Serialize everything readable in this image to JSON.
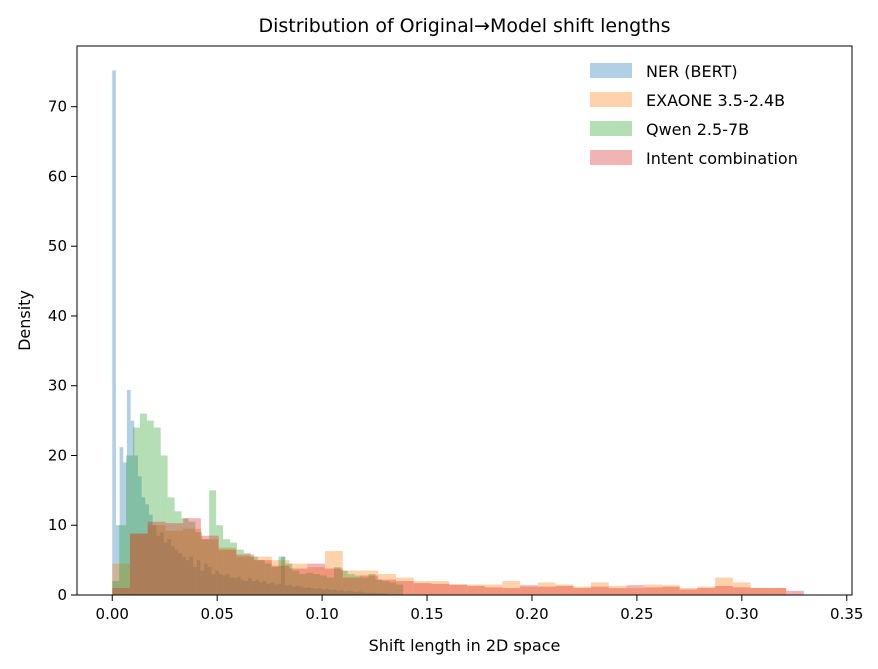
{
  "chart_data": {
    "type": "histogram",
    "title": "Distribution of Original→Model shift lengths",
    "xlabel": "Shift length in 2D space",
    "ylabel": "Density",
    "xlim": [
      -0.0168,
      0.3525
    ],
    "ylim": [
      0,
      78.7
    ],
    "xticks": [
      0.0,
      0.05,
      0.1,
      0.15,
      0.2,
      0.25,
      0.3,
      0.35
    ],
    "xtick_labels": [
      "0.00",
      "0.05",
      "0.10",
      "0.15",
      "0.20",
      "0.25",
      "0.30",
      "0.35"
    ],
    "yticks": [
      0,
      10,
      20,
      30,
      40,
      50,
      60,
      70
    ],
    "ytick_labels": [
      "0",
      "10",
      "20",
      "30",
      "40",
      "50",
      "60",
      "70"
    ],
    "legend_position": "top-right",
    "grid": false,
    "series": [
      {
        "name": "NER (BERT)",
        "color": "#1f77b4",
        "alpha": 0.35,
        "bin_start": 0.0,
        "bin_width": 0.00175,
        "values": [
          75.2,
          10.0,
          21.2,
          19.0,
          29.4,
          25.0,
          20.0,
          17.0,
          14.0,
          13.0,
          11.5,
          10.0,
          8.5,
          9.0,
          7.5,
          8.0,
          7.0,
          6.5,
          6.0,
          5.5,
          5.0,
          5.5,
          4.0,
          5.0,
          3.5,
          4.5,
          4.0,
          3.0,
          3.5,
          3.0,
          2.8,
          3.0,
          2.5,
          2.4,
          2.6,
          2.2,
          2.0,
          2.4,
          2.0,
          2.2,
          1.8,
          2.0,
          1.6,
          1.8,
          1.5,
          1.6,
          5.5,
          1.4,
          1.5,
          1.2,
          1.3,
          1.2,
          1.0,
          1.1,
          1.0,
          0.9,
          1.0,
          0.8,
          0.9,
          0.7,
          0.8,
          0.6,
          0.7,
          0.5,
          0.6,
          0.5,
          0.4,
          0.5,
          0.4,
          0.3,
          0.35,
          0.3,
          0.25,
          0.3,
          0.2
        ]
      },
      {
        "name": "EXAONE 3.5-2.4B",
        "color": "#ff7f0e",
        "alpha": 0.35,
        "bin_start": 0.0,
        "bin_width": 0.00845,
        "values": [
          4.5,
          8.8,
          10.0,
          9.2,
          9.5,
          8.0,
          6.8,
          5.5,
          5.5,
          5.0,
          4.5,
          4.0,
          6.3,
          3.5,
          3.5,
          3.0,
          2.5,
          2.0,
          2.0,
          1.5,
          1.5,
          1.5,
          2.0,
          1.2,
          1.8,
          1.5,
          1.2,
          1.8,
          1.3,
          1.0,
          1.5,
          1.4,
          1.0,
          1.2,
          2.5,
          1.8,
          1.0,
          1.0
        ]
      },
      {
        "name": "Qwen 2.5-7B",
        "color": "#2ca02c",
        "alpha": 0.35,
        "bin_start": 0.0,
        "bin_width": 0.0033,
        "values": [
          2.0,
          10.0,
          20.0,
          24.0,
          26.0,
          25.0,
          24.0,
          20.0,
          14.0,
          12.0,
          11.0,
          10.5,
          9.0,
          8.0,
          15.0,
          10.0,
          8.0,
          7.5,
          6.5,
          6.0,
          5.5,
          5.0,
          4.5,
          4.0,
          5.5,
          4.5,
          3.5,
          3.0,
          3.2,
          3.0,
          2.8,
          2.5,
          4.0,
          3.5,
          3.0,
          2.8,
          2.5,
          3.0,
          2.2,
          2.0,
          1.8,
          1.5
        ]
      },
      {
        "name": "Intent combination",
        "color": "#d62728",
        "alpha": 0.35,
        "bin_start": 0.0,
        "bin_width": 0.00845,
        "values": [
          1.0,
          8.8,
          10.5,
          10.3,
          11.0,
          8.5,
          6.5,
          5.8,
          5.0,
          4.2,
          3.8,
          4.5,
          3.8,
          2.5,
          2.8,
          2.2,
          2.0,
          1.7,
          1.6,
          1.5,
          1.3,
          1.1,
          1.0,
          1.4,
          1.2,
          1.3,
          1.0,
          1.2,
          1.0,
          1.4,
          1.1,
          1.2,
          0.8,
          1.0,
          1.3,
          1.1,
          1.0,
          1.0,
          0.6
        ]
      }
    ]
  }
}
